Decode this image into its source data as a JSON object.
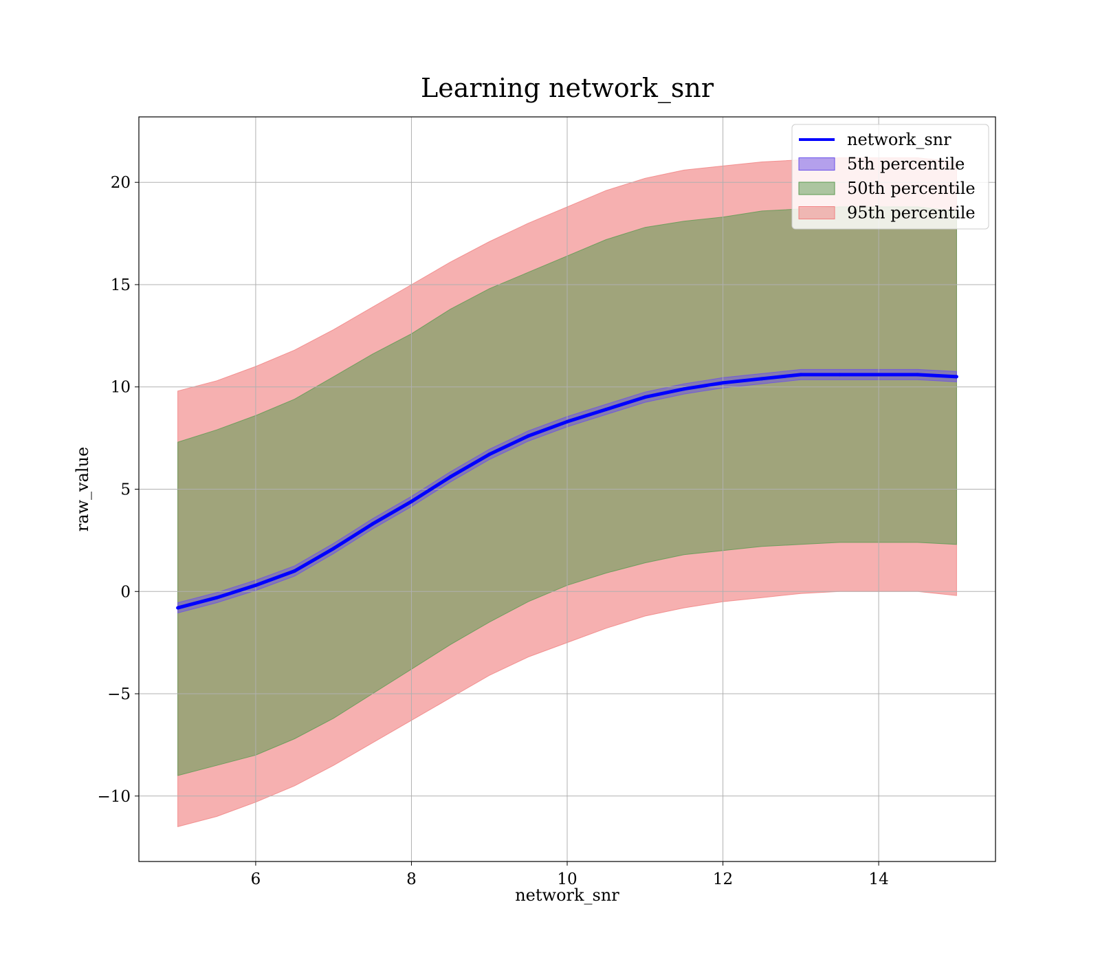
{
  "chart_data": {
    "type": "area",
    "title": "Learning network_snr",
    "xlabel": "network_snr",
    "ylabel": "raw_value",
    "xlim": [
      4.5,
      15.5
    ],
    "ylim": [
      -13.2,
      23.2
    ],
    "x_ticks": [
      6,
      8,
      10,
      12,
      14
    ],
    "y_ticks": [
      -10,
      -5,
      0,
      5,
      10,
      15,
      20
    ],
    "x_tick_labels": [
      "6",
      "8",
      "10",
      "12",
      "14"
    ],
    "y_tick_labels": [
      "−10",
      "−5",
      "0",
      "5",
      "10",
      "15",
      "20"
    ],
    "grid": true,
    "legend": {
      "position": "top-right",
      "entries": [
        {
          "label": "network_snr",
          "kind": "line",
          "color": "#0000ff"
        },
        {
          "label": "5th percentile",
          "kind": "band",
          "color": "#6a4fe8"
        },
        {
          "label": "50th percentile",
          "kind": "band",
          "color": "#5a9a50"
        },
        {
          "label": "95th percentile",
          "kind": "band",
          "color": "#f08080"
        }
      ]
    },
    "x": [
      5.0,
      5.5,
      6.0,
      6.5,
      7.0,
      7.5,
      8.0,
      8.5,
      9.0,
      9.5,
      10.0,
      10.5,
      11.0,
      11.5,
      12.0,
      12.5,
      13.0,
      13.5,
      14.0,
      14.5,
      15.0
    ],
    "series": [
      {
        "name": "network_snr",
        "type": "line",
        "color": "#0000ff",
        "values": [
          -0.8,
          -0.3,
          0.3,
          1.0,
          2.1,
          3.3,
          4.4,
          5.6,
          6.7,
          7.6,
          8.3,
          8.9,
          9.5,
          9.9,
          10.2,
          10.4,
          10.6,
          10.6,
          10.6,
          10.6,
          10.5
        ]
      },
      {
        "name": "5th percentile",
        "type": "band",
        "color": "#6a4fe8",
        "lower": [
          -1.05,
          -0.55,
          0.05,
          0.75,
          1.85,
          3.05,
          4.15,
          5.35,
          6.45,
          7.35,
          8.05,
          8.65,
          9.25,
          9.65,
          9.95,
          10.15,
          10.35,
          10.35,
          10.35,
          10.35,
          10.25
        ],
        "upper": [
          -0.55,
          -0.05,
          0.55,
          1.25,
          2.35,
          3.55,
          4.65,
          5.85,
          6.95,
          7.85,
          8.55,
          9.15,
          9.75,
          10.15,
          10.45,
          10.65,
          10.85,
          10.85,
          10.85,
          10.85,
          10.75
        ]
      },
      {
        "name": "50th percentile",
        "type": "band",
        "color": "#5a9a50",
        "lower": [
          -9.0,
          -8.5,
          -8.0,
          -7.2,
          -6.2,
          -5.0,
          -3.8,
          -2.6,
          -1.5,
          -0.5,
          0.3,
          0.9,
          1.4,
          1.8,
          2.0,
          2.2,
          2.3,
          2.4,
          2.4,
          2.4,
          2.3
        ],
        "upper": [
          7.3,
          7.9,
          8.6,
          9.4,
          10.5,
          11.6,
          12.6,
          13.8,
          14.8,
          15.6,
          16.4,
          17.2,
          17.8,
          18.1,
          18.3,
          18.6,
          18.7,
          18.8,
          18.8,
          18.8,
          18.6
        ]
      },
      {
        "name": "95th percentile",
        "type": "band",
        "color": "#f08080",
        "lower": [
          -11.5,
          -11.0,
          -10.3,
          -9.5,
          -8.5,
          -7.4,
          -6.3,
          -5.2,
          -4.1,
          -3.2,
          -2.5,
          -1.8,
          -1.2,
          -0.8,
          -0.5,
          -0.3,
          -0.1,
          0.0,
          0.0,
          0.0,
          -0.2
        ],
        "upper": [
          9.8,
          10.3,
          11.0,
          11.8,
          12.8,
          13.9,
          15.0,
          16.1,
          17.1,
          18.0,
          18.8,
          19.6,
          20.2,
          20.6,
          20.8,
          21.0,
          21.1,
          21.2,
          21.2,
          21.2,
          21.0
        ]
      }
    ]
  }
}
